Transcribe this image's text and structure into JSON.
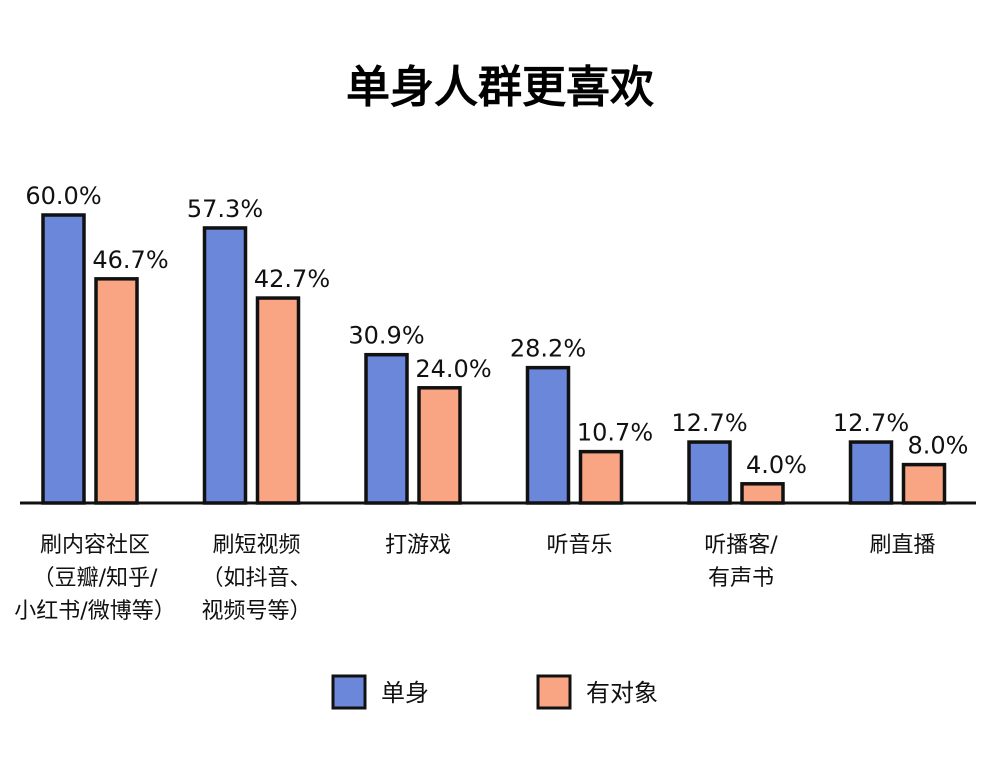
{
  "chart_data": {
    "type": "bar",
    "title": "单身人群更喜欢",
    "categories": [
      [
        "刷内容社区",
        "（豆瓣/知乎/",
        "小红书/微博等）"
      ],
      [
        "刷短视频",
        "（如抖音、",
        "视频号等）"
      ],
      [
        "打游戏"
      ],
      [
        "听音乐"
      ],
      [
        "听播客/",
        "有声书"
      ],
      [
        "刷直播"
      ]
    ],
    "series": [
      {
        "name": "单身",
        "color": "#6b87d9",
        "values": [
          60.0,
          57.3,
          30.9,
          28.2,
          12.7,
          12.7
        ],
        "labels": [
          "60.0%",
          "57.3%",
          "30.9%",
          "28.2%",
          "12.7%",
          "12.7%"
        ]
      },
      {
        "name": "有对象",
        "color": "#f9a583",
        "values": [
          46.7,
          42.7,
          24.0,
          10.7,
          4.0,
          8.0
        ],
        "labels": [
          "46.7%",
          "42.7%",
          "24.0%",
          "10.7%",
          "4.0%",
          "8.0%"
        ]
      }
    ],
    "ylim": [
      0,
      60
    ],
    "xlabel": "",
    "ylabel": "",
    "grid": false,
    "legend": "bottom-center"
  }
}
